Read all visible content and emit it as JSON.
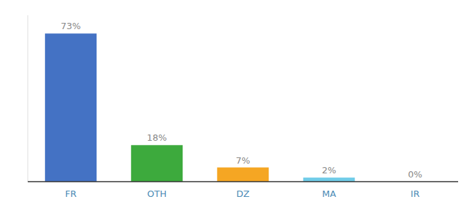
{
  "chart_data": {
    "type": "bar",
    "categories": [
      "FR",
      "OTH",
      "DZ",
      "MA",
      "IR"
    ],
    "values": [
      73,
      18,
      7,
      2,
      0
    ],
    "value_labels": [
      "73%",
      "18%",
      "7%",
      "2%",
      "0%"
    ],
    "colors": [
      "#4472c4",
      "#3daa3d",
      "#f5a623",
      "#70cce8",
      "#cccccc"
    ],
    "ylim": [
      0,
      82
    ],
    "data_labels": true,
    "tick_labels": "x",
    "grid": false
  }
}
